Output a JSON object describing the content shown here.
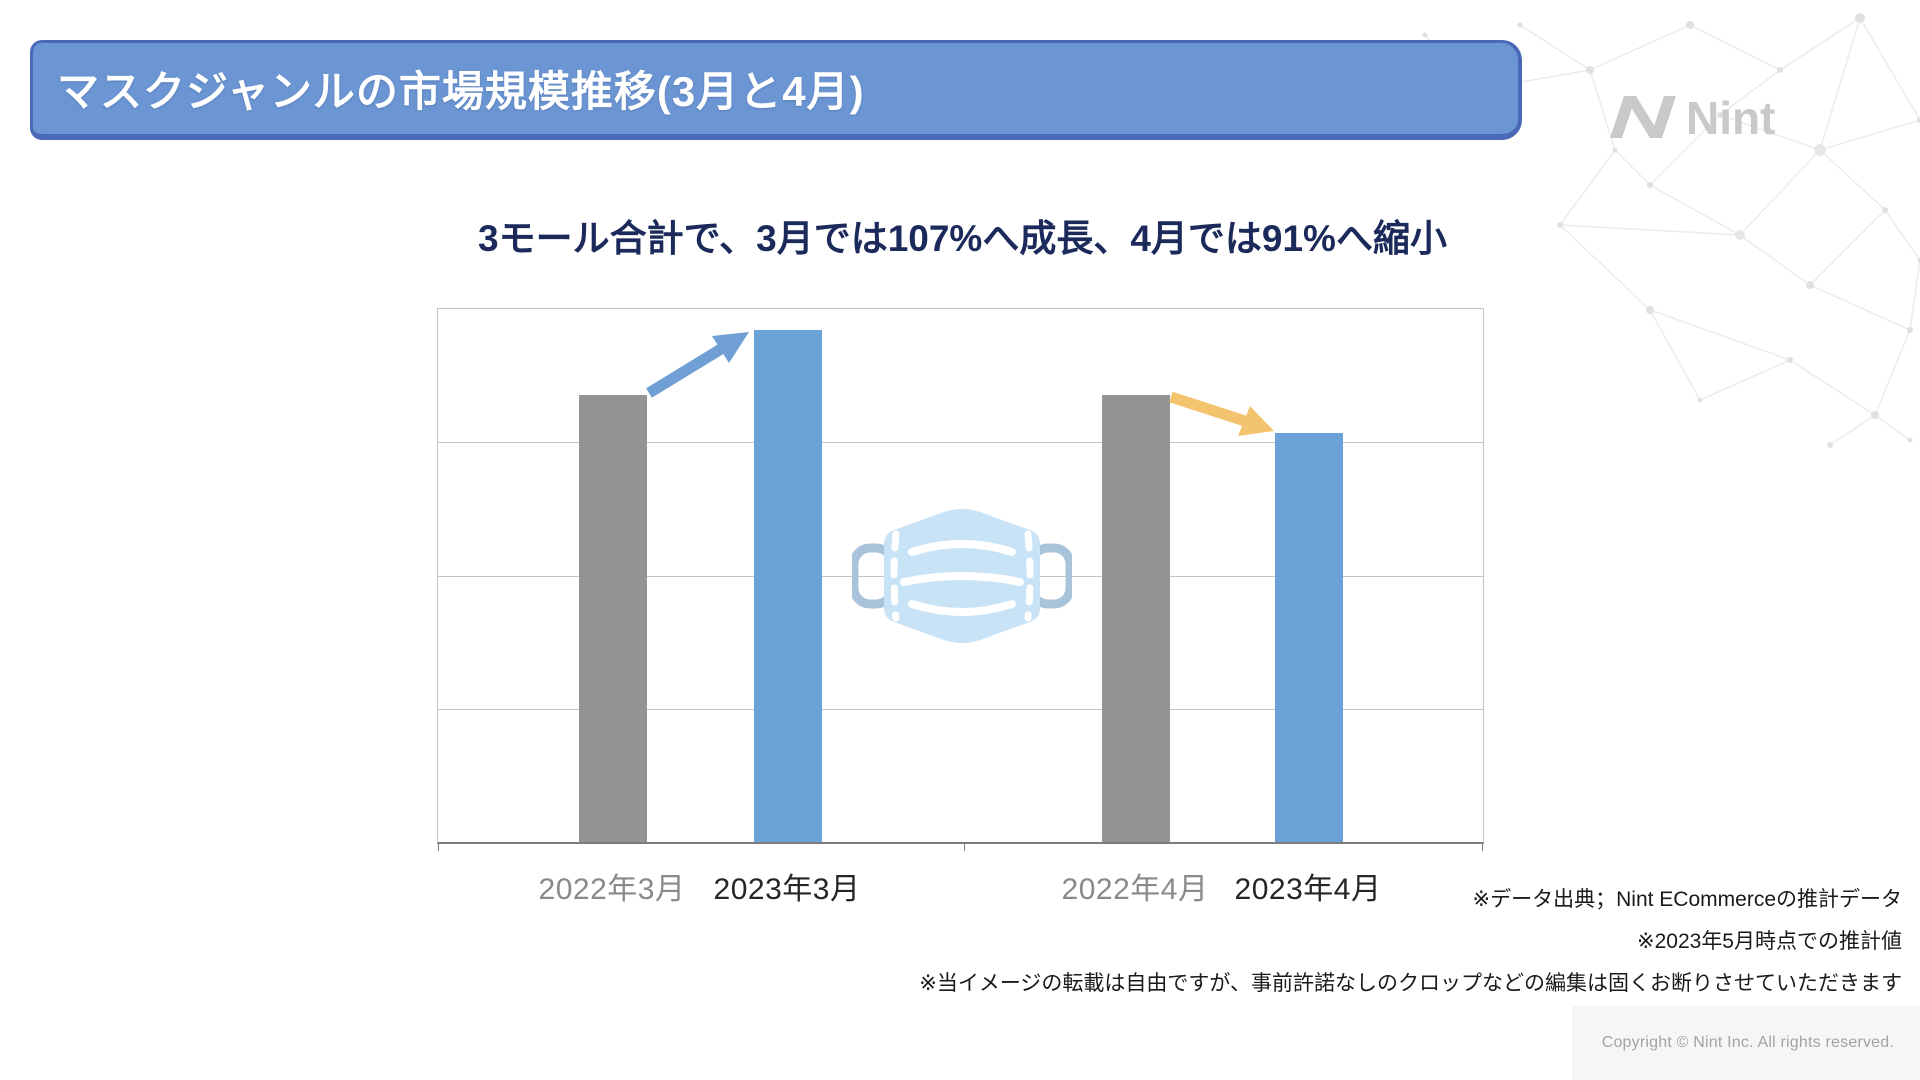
{
  "header": {
    "title": "マスクジャンルの市場規模推移(3月と4月)"
  },
  "logo": {
    "brand": "Nint"
  },
  "subtitle": "3モール合計で、3月では107%へ成長、4月では91%へ縮小",
  "chart_data": {
    "type": "bar",
    "title": "3モール合計で、3月では107%へ成長、4月では91%へ縮小",
    "categories": [
      "2022年3月",
      "2023年3月",
      "2022年4月",
      "2023年4月"
    ],
    "values": [
      100,
      107,
      100,
      91
    ],
    "value_unit": "%",
    "visual_height_frac": [
      0.839,
      0.961,
      0.839,
      0.767
    ],
    "bar_colors": [
      "#949494",
      "#6aa2d8",
      "#949494",
      "#6aa2d8"
    ],
    "category_label_colors": [
      "#8a8a8a",
      "#262626",
      "#8a8a8a",
      "#262626"
    ],
    "grid": true,
    "gridline_rows": 4,
    "legend": "none",
    "y_axis_labels": "none",
    "annotations": [
      {
        "name": "growth-arrow",
        "direction": "up",
        "from": "2022年3月",
        "to": "2023年3月",
        "color": "#6f9fd4"
      },
      {
        "name": "decline-arrow",
        "direction": "down",
        "from": "2022年4月",
        "to": "2023年4月",
        "color": "#f4c36e"
      }
    ]
  },
  "footnotes": [
    "※データ出典；Nint ECommerceの推計データ",
    "※2023年5月時点での推計値",
    "※当イメージの転載は自由ですが、事前許諾なしのクロップなどの編集は固くお断りさせていただきます"
  ],
  "copyright": "Copyright © Nint Inc. All rights reserved.",
  "colors": {
    "header_blue": "#6b96d3",
    "header_border": "#4a68b8",
    "accent_navy": "#1b2a5a",
    "arrow_up": "#6f9fd4",
    "arrow_down": "#f4c36e",
    "bar_2022": "#949494",
    "bar_2023": "#6aa2d8",
    "mask_body": "#c8e2f6",
    "mask_loop": "#a9c3da"
  }
}
